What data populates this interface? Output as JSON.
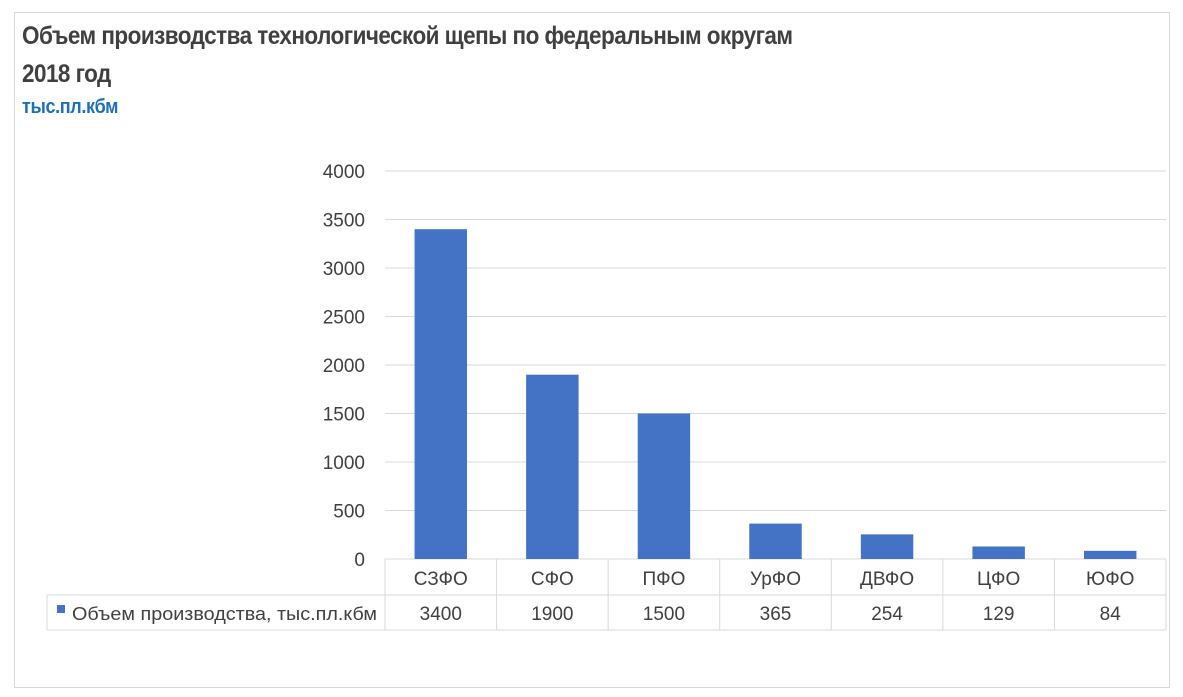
{
  "chart_data": {
    "type": "bar",
    "title": "Объем производства технологической щепы по федеральным округам",
    "subtitle": "2018 год",
    "units": "тыс.пл.кбм",
    "categories": [
      "СЗФО",
      "СФО",
      "ПФО",
      "УрФО",
      "ДВФО",
      "ЦФО",
      "ЮФО"
    ],
    "series": [
      {
        "name": "Объем производства, тыс.пл.кбм",
        "values": [
          3400,
          1900,
          1500,
          365,
          254,
          129,
          84
        ],
        "color": "#4472c4"
      }
    ],
    "y_ticks": [
      0,
      500,
      1000,
      1500,
      2000,
      2500,
      3000,
      3500,
      4000
    ],
    "ylim": [
      0,
      4000
    ],
    "grid": true,
    "legend": "data-table"
  }
}
